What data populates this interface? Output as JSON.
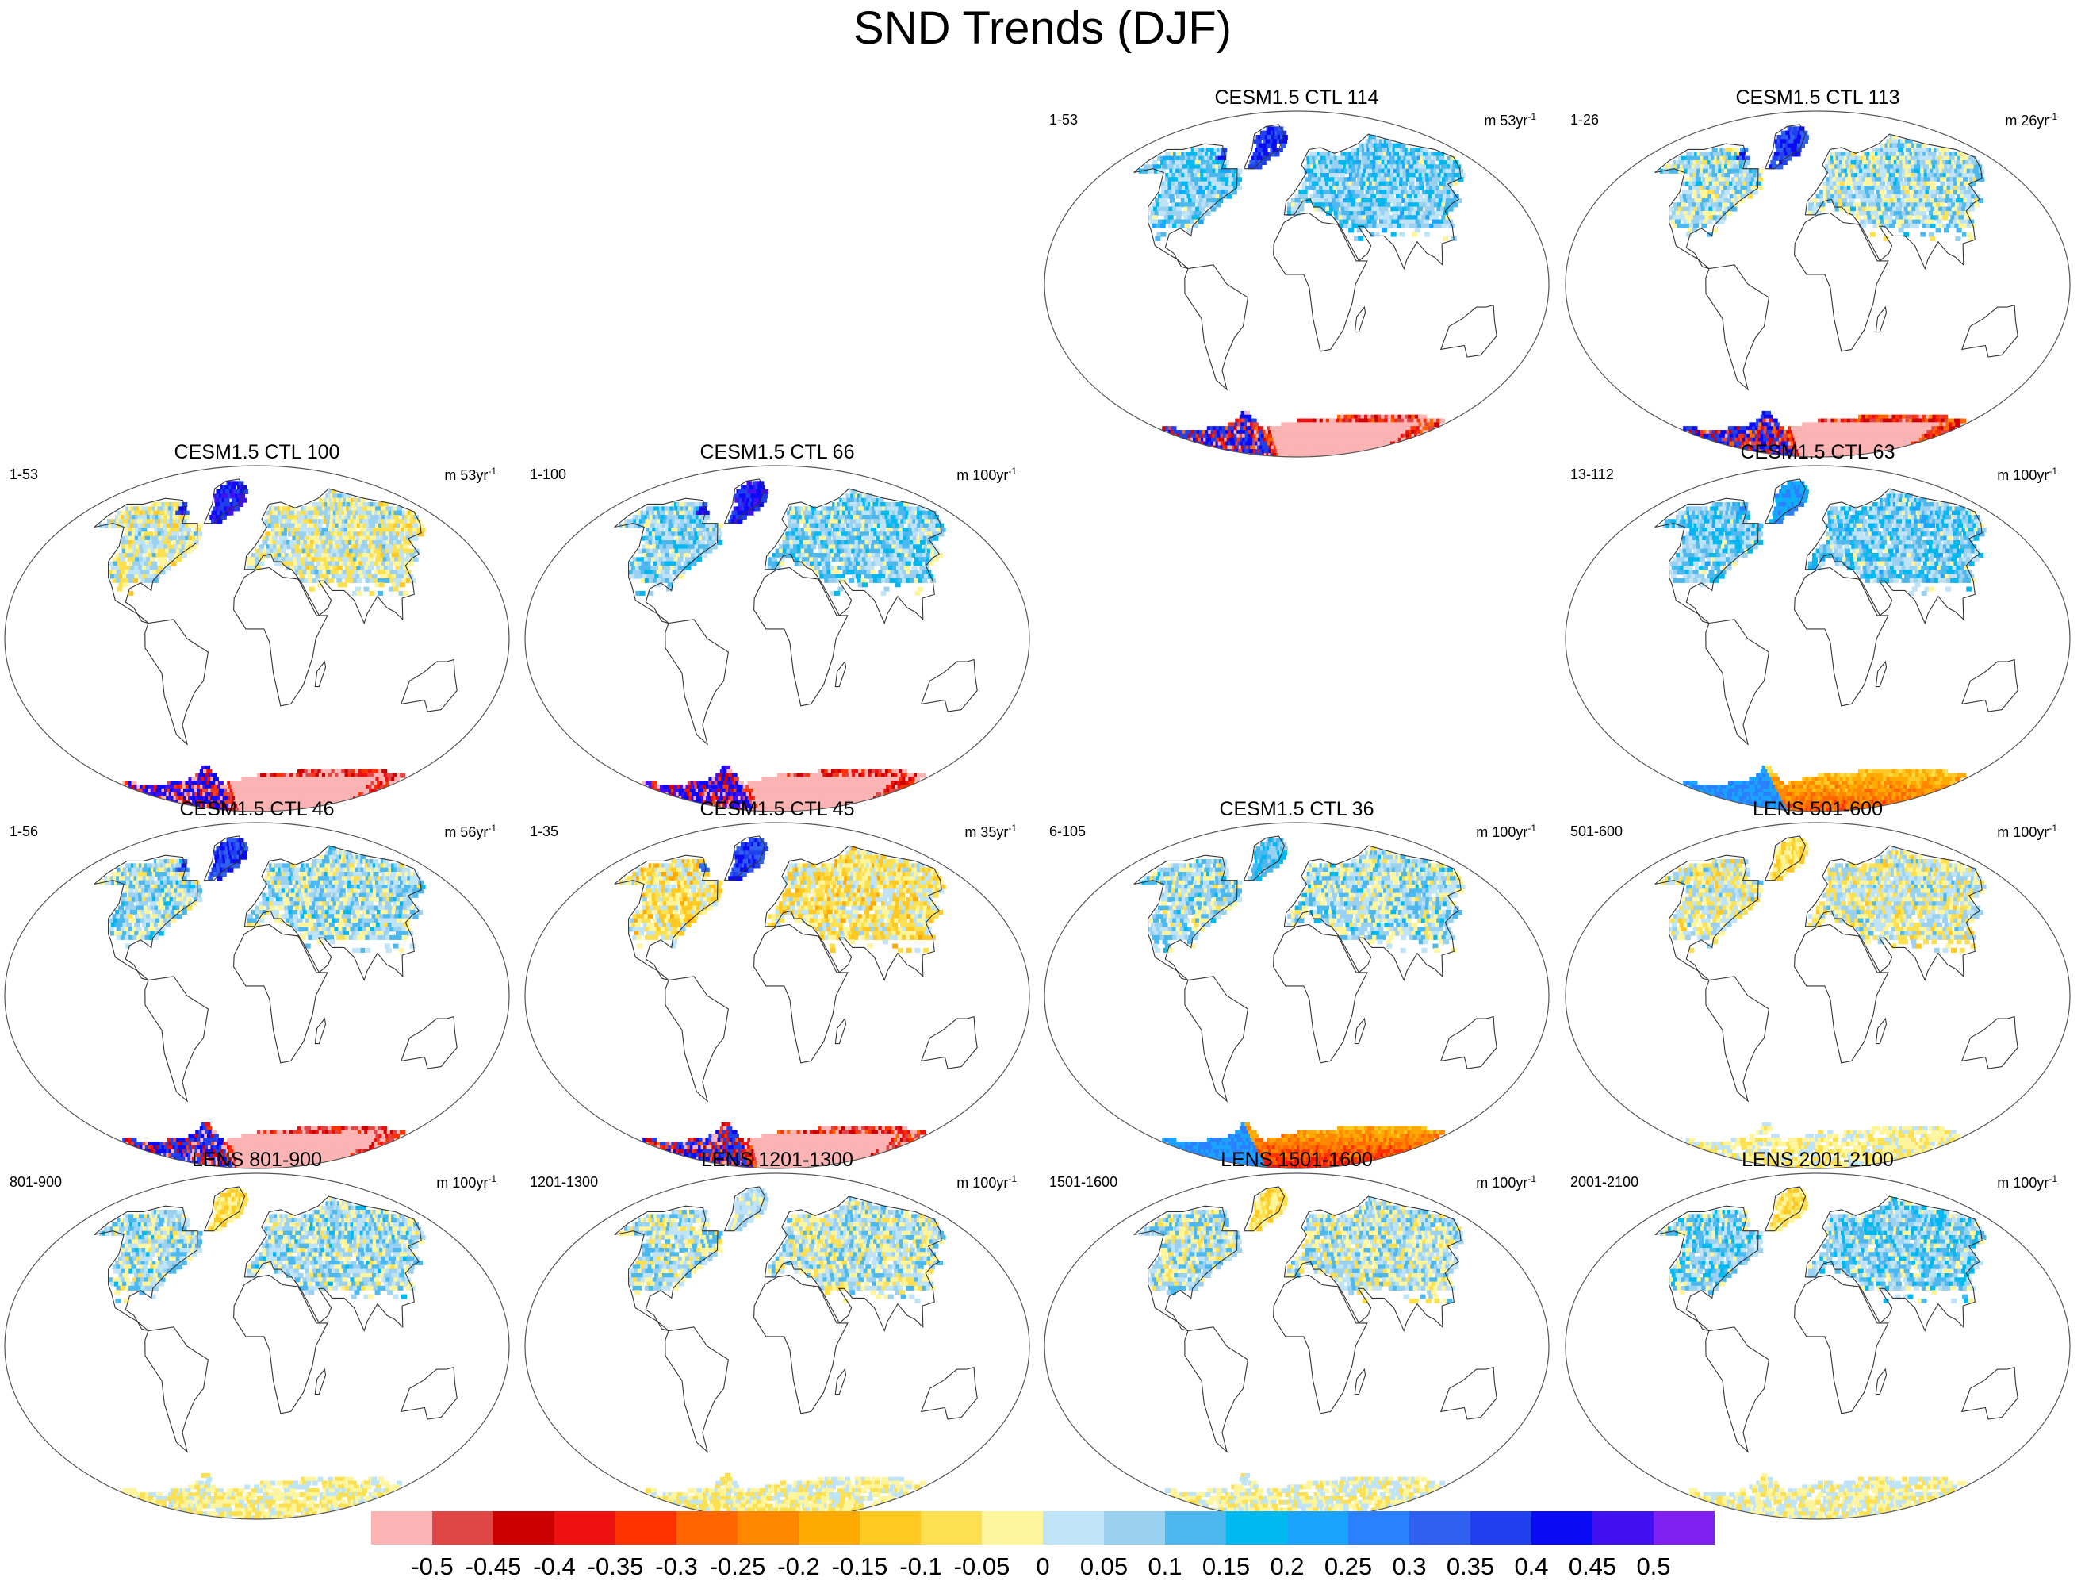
{
  "title": "SND Trends (DJF)",
  "palette": [
    "#fbb3b3",
    "#e04646",
    "#cc0000",
    "#ee1111",
    "#ff3300",
    "#ff6600",
    "#ff8800",
    "#ffaa00",
    "#ffc822",
    "#fde050",
    "#fff59c",
    "#bfe3f7",
    "#9ad0f0",
    "#4db8ee",
    "#00b8f0",
    "#1aa3ff",
    "#2a80ff",
    "#3060f0",
    "#2040ee",
    "#0a0af5",
    "#4010f0",
    "#8020f0"
  ],
  "colorbar": {
    "labels": [
      "-0.5",
      "-0.45",
      "-0.4",
      "-0.35",
      "-0.3",
      "-0.25",
      "-0.2",
      "-0.15",
      "-0.1",
      "-0.05",
      "0",
      "0.05",
      "0.1",
      "0.15",
      "0.2",
      "0.25",
      "0.3",
      "0.35",
      "0.4",
      "0.45",
      "0.5"
    ]
  },
  "panels": [
    {
      "id": "ctl114",
      "title": "CESM1.5 CTL 114",
      "period": "1-53",
      "units_base": "m 53yr",
      "units_exp": "-1",
      "row": 0,
      "col": 2,
      "nh": 0.1,
      "ant": -0.42,
      "purple": 0.45
    },
    {
      "id": "ctl113",
      "title": "CESM1.5 CTL 113",
      "period": "1-26",
      "units_base": "m 26yr",
      "units_exp": "-1",
      "row": 0,
      "col": 3,
      "nh": 0.05,
      "ant": -0.38,
      "purple": 0.45
    },
    {
      "id": "ctl100",
      "title": "CESM1.5 CTL 100",
      "period": "1-53",
      "units_base": "m 53yr",
      "units_exp": "-1",
      "row": 1,
      "col": 0,
      "nh": 0.0,
      "ant": -0.45,
      "purple": 0.5
    },
    {
      "id": "ctl66",
      "title": "CESM1.5 CTL 66",
      "period": "1-100",
      "units_base": "m 100yr",
      "units_exp": "-1",
      "row": 1,
      "col": 1,
      "nh": 0.08,
      "ant": -0.45,
      "purple": 0.5
    },
    {
      "id": "ctl63",
      "title": "CESM1.5 CTL 63",
      "period": "13-112",
      "units_base": "m 100yr",
      "units_exp": "-1",
      "row": 1,
      "col": 3,
      "nh": 0.1,
      "ant": -0.2,
      "purple": 0.3
    },
    {
      "id": "ctl46",
      "title": "CESM1.5 CTL 46",
      "period": "1-56",
      "units_base": "m 56yr",
      "units_exp": "-1",
      "row": 2,
      "col": 0,
      "nh": 0.05,
      "ant": -0.47,
      "purple": 0.45
    },
    {
      "id": "ctl45",
      "title": "CESM1.5 CTL 45",
      "period": "1-35",
      "units_base": "m 35yr",
      "units_exp": "-1",
      "row": 2,
      "col": 1,
      "nh": -0.05,
      "ant": -0.42,
      "purple": 0.45
    },
    {
      "id": "ctl36",
      "title": "CESM1.5 CTL 36",
      "period": "6-105",
      "units_base": "m 100yr",
      "units_exp": "-1",
      "row": 2,
      "col": 2,
      "nh": 0.05,
      "ant": -0.25,
      "purple": 0.2
    },
    {
      "id": "lens501",
      "title": "LENS 501-600",
      "period": "501-600",
      "units_base": "m 100yr",
      "units_exp": "-1",
      "row": 2,
      "col": 3,
      "nh": 0.0,
      "ant": -0.03,
      "purple": 0.0
    },
    {
      "id": "lens801",
      "title": "LENS 801-900",
      "period": "801-900",
      "units_base": "m 100yr",
      "units_exp": "-1",
      "row": 3,
      "col": 0,
      "nh": 0.05,
      "ant": -0.03,
      "purple": 0.0
    },
    {
      "id": "lens1201",
      "title": "LENS 1201-1300",
      "period": "1201-1300",
      "units_base": "m 100yr",
      "units_exp": "-1",
      "row": 3,
      "col": 1,
      "nh": 0.03,
      "ant": -0.03,
      "purple": 0.1
    },
    {
      "id": "lens1501",
      "title": "LENS 1501-1600",
      "period": "1501-1600",
      "units_base": "m 100yr",
      "units_exp": "-1",
      "row": 3,
      "col": 2,
      "nh": 0.03,
      "ant": -0.02,
      "purple": 0.0
    },
    {
      "id": "lens2001",
      "title": "LENS 2001-2100",
      "period": "2001-2100",
      "units_base": "m 100yr",
      "units_exp": "-1",
      "row": 3,
      "col": 3,
      "nh": 0.08,
      "ant": -0.02,
      "purple": 0.0
    }
  ]
}
